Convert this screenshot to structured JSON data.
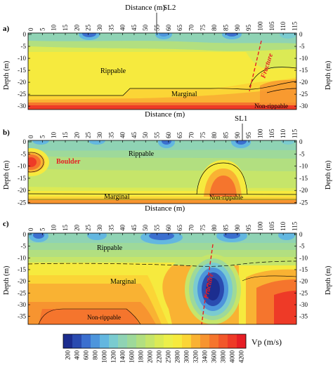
{
  "panels": [
    {
      "letter": "a)",
      "top_title": "Distance (m)",
      "bottom_title": "Distance (m)",
      "marker": "SL2",
      "ticks_x": [
        "0",
        "5",
        "10",
        "15",
        "20",
        "25",
        "30",
        "35",
        "40",
        "45",
        "50",
        "55",
        "60",
        "65",
        "70",
        "75",
        "80",
        "85",
        "90",
        "95",
        "100",
        "105",
        "110",
        "115"
      ],
      "ticks_y": [
        "0",
        "-5",
        "-10",
        "-15",
        "-20",
        "-25",
        "-30"
      ],
      "y_label": "Depth (m)",
      "labels": {
        "rippable": "Rippable",
        "marginal": "Marginal",
        "nonrippable": "Non-rippable",
        "fracture": "Fracture"
      }
    },
    {
      "letter": "b)",
      "bottom_title": "Distance (m)",
      "marker": "SL1",
      "ticks_x": [
        "0",
        "5",
        "10",
        "15",
        "20",
        "25",
        "30",
        "35",
        "40",
        "45",
        "50",
        "55",
        "60",
        "65",
        "70",
        "75",
        "80",
        "85",
        "90",
        "95",
        "100",
        "105",
        "110",
        "115"
      ],
      "ticks_y": [
        "0",
        "-5",
        "-10",
        "-15",
        "-20",
        "-25"
      ],
      "y_label": "Depth (m)",
      "labels": {
        "rippable": "Rippable",
        "marginal": "Marginal",
        "nonrippable": "Non-rippable",
        "boulder": "Boulder"
      }
    },
    {
      "letter": "c)",
      "ticks_x": [
        "0",
        "5",
        "10",
        "15",
        "20",
        "25",
        "30",
        "35",
        "40",
        "45",
        "50",
        "55",
        "60",
        "65",
        "70",
        "75",
        "80",
        "85",
        "90",
        "95",
        "100",
        "105",
        "110",
        "115"
      ],
      "ticks_y": [
        "0",
        "-5",
        "-10",
        "-15",
        "-20",
        "-25",
        "-30",
        "-35"
      ],
      "y_label": "Depth (m)",
      "labels": {
        "rippable": "Rippable",
        "marginal": "Marginal",
        "nonrippable": "Non-rippable",
        "fracture": "Fracture"
      }
    }
  ],
  "colorbar": {
    "title": "Vp (m/s)",
    "ticks": [
      "200",
      "400",
      "600",
      "800",
      "1000",
      "1200",
      "1400",
      "1600",
      "1800",
      "2000",
      "2200",
      "2500",
      "2800",
      "3000",
      "3200",
      "3400",
      "3600",
      "3800",
      "4000",
      "4200"
    ],
    "colors": [
      "#1c2d8f",
      "#2a4bb0",
      "#3b6fcf",
      "#4d95dc",
      "#63b7e0",
      "#7acbd0",
      "#8fd3b4",
      "#9ed99a",
      "#b2df80",
      "#c6e56a",
      "#dbea55",
      "#ecef4a",
      "#f6ea3e",
      "#fbd536",
      "#f9b233",
      "#f79430",
      "#f5752d",
      "#f2572a",
      "#ee3a27",
      "#e61e25"
    ]
  }
}
